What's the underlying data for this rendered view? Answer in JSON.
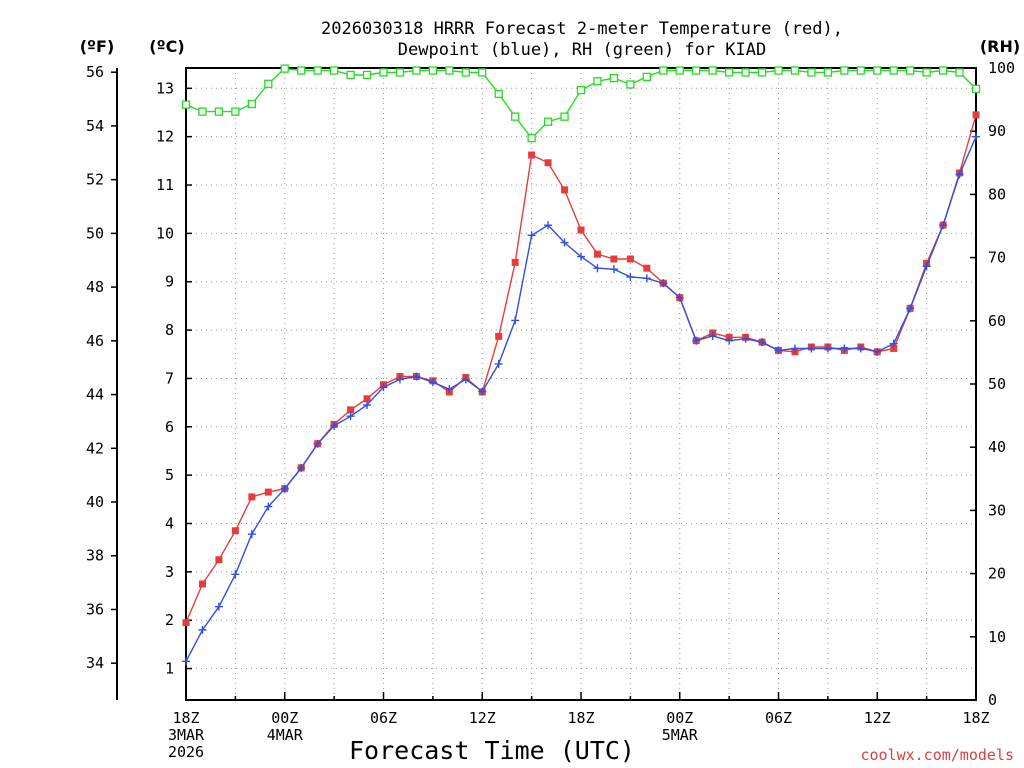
{
  "chart_data": {
    "type": "line",
    "title_line1": "2026030318 HRRR Forecast 2-meter Temperature (red),",
    "title_line2": "Dewpoint (blue), RH (green) for KIAD",
    "xlabel": "Forecast Time (UTC)",
    "credit": "coolwx.com/models",
    "units": {
      "fahrenheit": "(ºF)",
      "celsius": "(ºC)",
      "rh": "(RH)"
    },
    "xlim": [
      0,
      48
    ],
    "ylim_celsius": [
      0.35,
      13.42
    ],
    "ylim_rh": [
      0,
      100
    ],
    "x_ticks": [
      {
        "x": 0,
        "lines": [
          "18Z",
          "3MAR",
          "2026"
        ]
      },
      {
        "x": 6,
        "lines": [
          "00Z",
          "4MAR"
        ]
      },
      {
        "x": 12,
        "lines": [
          "06Z"
        ]
      },
      {
        "x": 18,
        "lines": [
          "12Z"
        ]
      },
      {
        "x": 24,
        "lines": [
          "18Z"
        ]
      },
      {
        "x": 30,
        "lines": [
          "00Z",
          "5MAR"
        ]
      },
      {
        "x": 36,
        "lines": [
          "06Z"
        ]
      },
      {
        "x": 42,
        "lines": [
          "12Z"
        ]
      },
      {
        "x": 48,
        "lines": [
          "18Z"
        ]
      }
    ],
    "celsius_ticks": [
      "1",
      "2",
      "3",
      "4",
      "5",
      "6",
      "7",
      "8",
      "9",
      "10",
      "11",
      "12",
      "13"
    ],
    "fahrenheit_ticks": [
      "34",
      "36",
      "38",
      "40",
      "42",
      "44",
      "46",
      "48",
      "50",
      "52",
      "54",
      "56"
    ],
    "rh_ticks": [
      "0",
      "10",
      "20",
      "30",
      "40",
      "50",
      "60",
      "70",
      "80",
      "90",
      "100"
    ],
    "series": [
      {
        "name": "Temperature",
        "units": "C",
        "color": "#e83c3c",
        "marker": "square",
        "values": [
          1.95,
          2.75,
          3.25,
          3.85,
          4.55,
          4.65,
          4.72,
          5.15,
          5.65,
          6.05,
          6.35,
          6.58,
          6.87,
          7.04,
          7.04,
          6.95,
          6.72,
          7.02,
          6.72,
          7.87,
          9.4,
          11.62,
          11.46,
          10.9,
          10.07,
          9.57,
          9.47,
          9.47,
          9.28,
          8.97,
          8.67,
          7.78,
          7.94,
          7.85,
          7.85,
          7.75,
          7.58,
          7.55,
          7.65,
          7.65,
          7.58,
          7.65,
          7.55,
          7.62,
          8.45,
          9.38,
          10.17,
          11.25,
          12.45
        ]
      },
      {
        "name": "Dewpoint",
        "units": "C",
        "color": "#3250e0",
        "marker": "plus",
        "values": [
          1.15,
          1.8,
          2.28,
          2.95,
          3.78,
          4.35,
          4.72,
          5.15,
          5.65,
          6.02,
          6.22,
          6.45,
          6.82,
          6.98,
          7.04,
          6.92,
          6.78,
          6.98,
          6.73,
          7.3,
          8.2,
          9.96,
          10.17,
          9.81,
          9.52,
          9.28,
          9.26,
          9.1,
          9.07,
          8.97,
          8.67,
          7.78,
          7.88,
          7.78,
          7.82,
          7.75,
          7.58,
          7.62,
          7.62,
          7.62,
          7.62,
          7.62,
          7.55,
          7.72,
          8.45,
          9.32,
          10.17,
          11.22,
          12.0
        ]
      },
      {
        "name": "RH",
        "units": "%",
        "color": "#22dd22",
        "marker": "open-square",
        "values": [
          94.2,
          93.1,
          93.1,
          93.1,
          94.3,
          97.5,
          99.9,
          99.6,
          99.6,
          99.6,
          98.9,
          98.9,
          99.3,
          99.3,
          99.6,
          99.6,
          99.6,
          99.3,
          99.3,
          95.9,
          92.3,
          88.9,
          91.5,
          92.3,
          96.5,
          97.9,
          98.4,
          97.4,
          98.6,
          99.6,
          99.6,
          99.6,
          99.6,
          99.3,
          99.3,
          99.3,
          99.6,
          99.6,
          99.3,
          99.3,
          99.6,
          99.6,
          99.6,
          99.6,
          99.6,
          99.3,
          99.6,
          99.3,
          96.7
        ]
      }
    ]
  }
}
